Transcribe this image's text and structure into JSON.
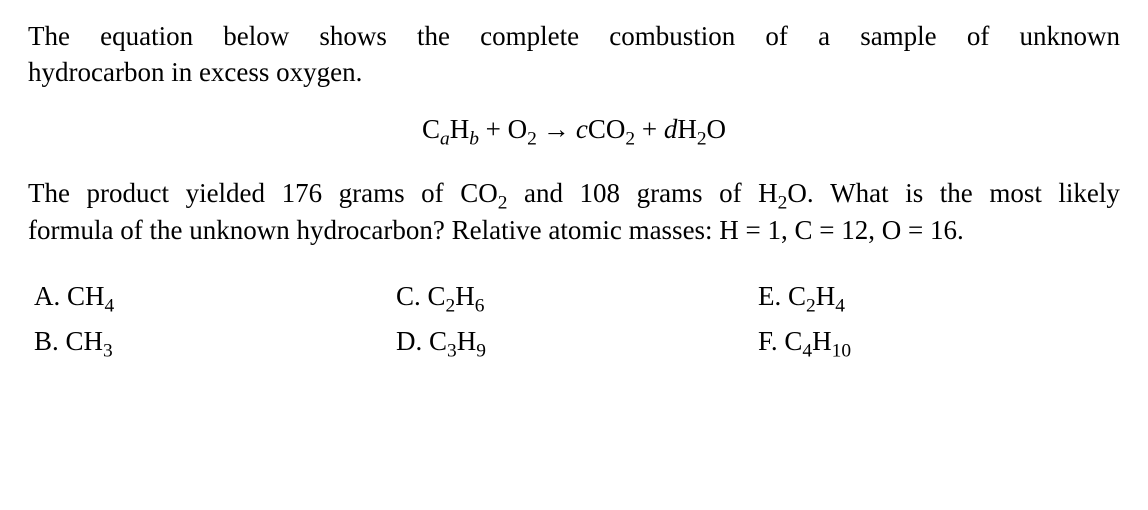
{
  "intro": {
    "w1": "The",
    "w2": "equation",
    "w3": "below",
    "w4": "shows",
    "w5": "the",
    "w6": "complete",
    "w7": "combustion",
    "w8": "of",
    "w9": "a",
    "w10": "sample",
    "w11": "of",
    "w12": "unknown",
    "line2": "hydrocarbon in excess oxygen."
  },
  "equation": {
    "C": "C",
    "a": "a",
    "H": "H",
    "b": "b",
    "plus1": " + ",
    "O": "O",
    "two1": "2",
    "arrow": "→",
    "c": "c",
    "CO": "CO",
    "two2": "2",
    "plus2": " + ",
    "d": "d",
    "H2": "H",
    "two3": "2",
    "Oend": "O"
  },
  "explain": {
    "e1": "The",
    "e2": "product",
    "e3": "yielded",
    "e4": "176",
    "e5": "grams",
    "e6": "of",
    "e7a": "CO",
    "e7s": "2",
    "e8": "and",
    "e9": "108",
    "e10": "grams",
    "e11": "of",
    "e12a": "H",
    "e12s": "2",
    "e12b": "O.",
    "e13": "What",
    "e14": "is",
    "e15": "the",
    "e16": "most",
    "e17": "likely",
    "line2a": "formula of the unknown hydrocarbon? Relative atomic masses: H = 1, C = 12, O = 16."
  },
  "options": {
    "A": {
      "label": "A. ",
      "f": "CH",
      "s1": "4"
    },
    "B": {
      "label": "B. ",
      "f": "CH",
      "s1": "3"
    },
    "C": {
      "label": "C. ",
      "f1": "C",
      "s1": "2",
      "f2": "H",
      "s2": "6"
    },
    "D": {
      "label": "D. ",
      "f1": "C",
      "s1": "3",
      "f2": "H",
      "s2": "9"
    },
    "E": {
      "label": "E. ",
      "f1": "C",
      "s1": "2",
      "f2": "H",
      "s2": "4"
    },
    "F": {
      "label": "F. ",
      "f1": "C",
      "s1": "4",
      "f2": "H",
      "s2": "10"
    }
  }
}
